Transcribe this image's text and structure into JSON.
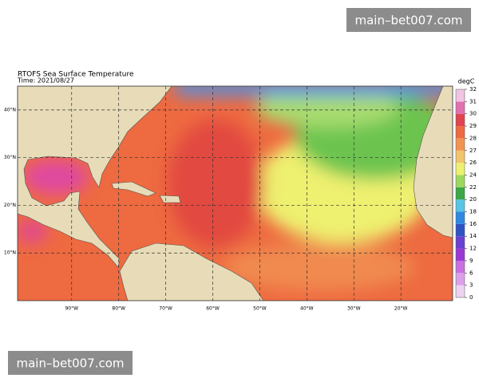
{
  "watermark_top": "main–bet007.com",
  "watermark_bottom": "main–bet007.com",
  "map": {
    "title": "RTOFS Sea Surface Temperature",
    "subtitle": "Time: 2021/08/27",
    "xlim": [
      -101.5,
      -9
    ],
    "ylim": [
      0,
      45
    ],
    "xticks": [
      {
        "value": -90,
        "label": "90°W"
      },
      {
        "value": -80,
        "label": "80°W"
      },
      {
        "value": -70,
        "label": "70°W"
      },
      {
        "value": -60,
        "label": "60°W"
      },
      {
        "value": -50,
        "label": "50°W"
      },
      {
        "value": -40,
        "label": "40°W"
      },
      {
        "value": -30,
        "label": "30°W"
      },
      {
        "value": -20,
        "label": "20°W"
      }
    ],
    "yticks": [
      {
        "value": 10,
        "label": "10°N"
      },
      {
        "value": 20,
        "label": "20°N"
      },
      {
        "value": 30,
        "label": "30°N"
      },
      {
        "value": 40,
        "label": "40°N"
      }
    ],
    "colorbar": {
      "label": "degC",
      "ticks": [
        0,
        3,
        6,
        9,
        12,
        14,
        16,
        18,
        20,
        22,
        24,
        26,
        27,
        28,
        29,
        30,
        31,
        32
      ],
      "colors": [
        "#ecd4f0",
        "#dca0ea",
        "#c870e2",
        "#9a38d4",
        "#6a40d0",
        "#2e54c4",
        "#3088e2",
        "#58c4e6",
        "#3aa844",
        "#9ed85c",
        "#eef070",
        "#f2c46c",
        "#f29450",
        "#ee6a40",
        "#e04450",
        "#e070b0",
        "#f0c4e2"
      ]
    }
  }
}
